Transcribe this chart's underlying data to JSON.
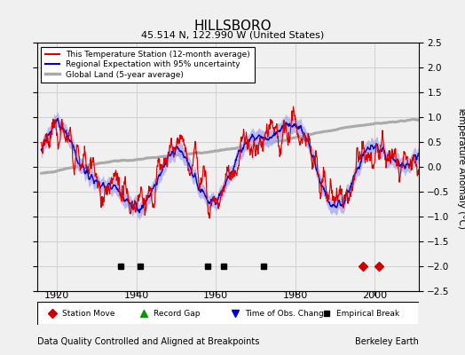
{
  "title": "HILLSBORO",
  "subtitle": "45.514 N, 122.990 W (United States)",
  "ylabel_right": "Temperature Anomaly (°C)",
  "footer_left": "Data Quality Controlled and Aligned at Breakpoints",
  "footer_right": "Berkeley Earth",
  "xlim": [
    1915,
    2011
  ],
  "ylim": [
    -2.5,
    2.5
  ],
  "yticks": [
    -2.5,
    -2,
    -1.5,
    -1,
    -0.5,
    0,
    0.5,
    1,
    1.5,
    2,
    2.5
  ],
  "xticks": [
    1920,
    1940,
    1960,
    1980,
    2000
  ],
  "bg_color": "#f0f0f0",
  "grid_color": "#cccccc",
  "station_color": "#dd0000",
  "regional_line_color": "#0000cc",
  "regional_fill_color": "#aaaaee",
  "global_color": "#aaaaaa",
  "legend_items": [
    {
      "label": "This Temperature Station (12-month average)",
      "color": "#dd0000",
      "lw": 1.5
    },
    {
      "label": "Regional Expectation with 95% uncertainty",
      "color": "#0000cc",
      "lw": 1.5
    },
    {
      "label": "Global Land (5-year average)",
      "color": "#aaaaaa",
      "lw": 2.5
    }
  ],
  "marker_legend": [
    {
      "label": "Station Move",
      "marker": "D",
      "color": "#cc0000"
    },
    {
      "label": "Record Gap",
      "marker": "^",
      "color": "#009900"
    },
    {
      "label": "Time of Obs. Change",
      "marker": "v",
      "color": "#0000cc"
    },
    {
      "label": "Empirical Break",
      "marker": "s",
      "color": "#000000"
    }
  ],
  "station_moves": [
    1997.0,
    2001.0
  ],
  "record_gaps": [],
  "obs_changes": [],
  "empirical_breaks": [
    1936.0,
    1941.0,
    1958.0,
    1962.0,
    1972.0
  ],
  "seed": 17,
  "start_year": 1916,
  "end_year": 2011
}
